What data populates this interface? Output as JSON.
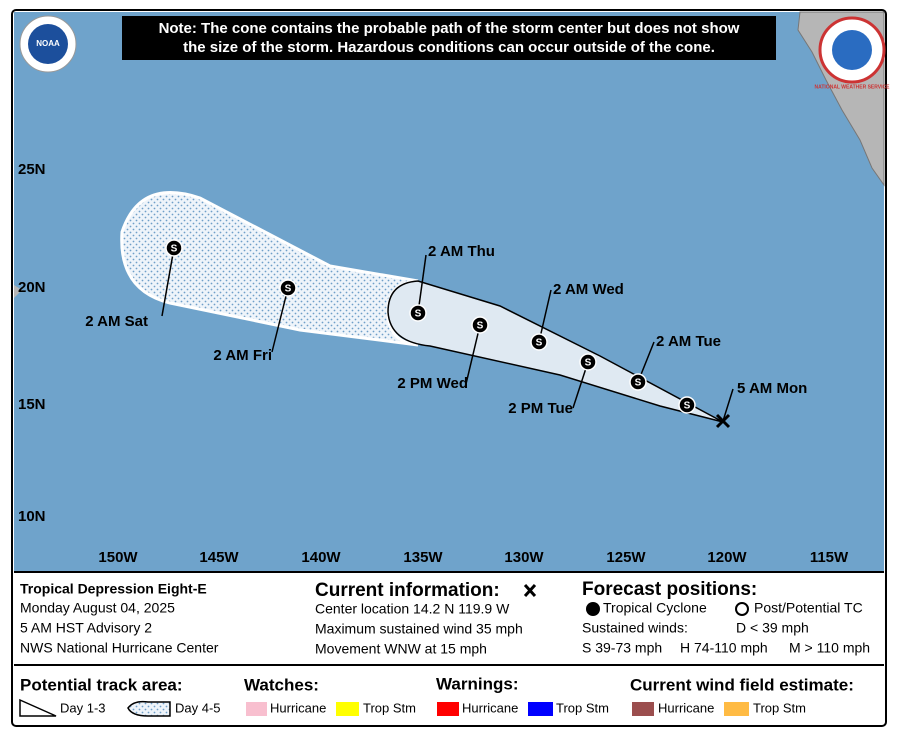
{
  "header": {
    "note": [
      "Note: The cone contains the probable path of the storm center but does not show",
      "the size of the storm. Hazardous conditions can occur outside of the cone."
    ],
    "logos": {
      "noaa": "NOAA",
      "nws": "NATIONAL WEATHER SERVICE"
    }
  },
  "map": {
    "lat_labels": [
      "25N",
      "20N",
      "15N",
      "10N"
    ],
    "lon_labels": [
      "150W",
      "145W",
      "140W",
      "135W",
      "130W",
      "125W",
      "120W",
      "115W"
    ],
    "point_symbol": "S",
    "forecast_labels": [
      "2 AM Sat",
      "2 AM Fri",
      "2 AM Thu",
      "2 PM Wed",
      "2 AM Wed",
      "2 PM Tue",
      "2 AM Tue",
      "5 AM Mon"
    ]
  },
  "info": {
    "storm": {
      "name": "Tropical Depression Eight-E",
      "date": "Monday August 04, 2025",
      "advisory": "5 AM HST Advisory 2",
      "center": "NWS National Hurricane Center"
    },
    "current": {
      "title": "Current information:",
      "location": "Center location 14.2 N 119.9 W",
      "wind": "Maximum sustained wind 35 mph",
      "movement": "Movement WNW at 15 mph"
    },
    "forecast": {
      "title": "Forecast positions:",
      "tc": "Tropical Cyclone",
      "post": "Post/Potential TC",
      "winds_label": "Sustained winds:",
      "d": "D < 39 mph",
      "s": "S 39-73 mph",
      "h": "H 74-110 mph",
      "m": "M > 110 mph"
    }
  },
  "legend": {
    "track": {
      "title": "Potential track area:",
      "day13": "Day 1-3",
      "day45": "Day 4-5"
    },
    "watches": {
      "title": "Watches:",
      "hurricane": "Hurricane",
      "tropstm": "Trop Stm"
    },
    "warnings": {
      "title": "Warnings:",
      "hurricane": "Hurricane",
      "tropstm": "Trop Stm"
    },
    "wind": {
      "title": "Current wind field estimate:",
      "hurricane": "Hurricane",
      "tropstm": "Trop Stm"
    }
  }
}
